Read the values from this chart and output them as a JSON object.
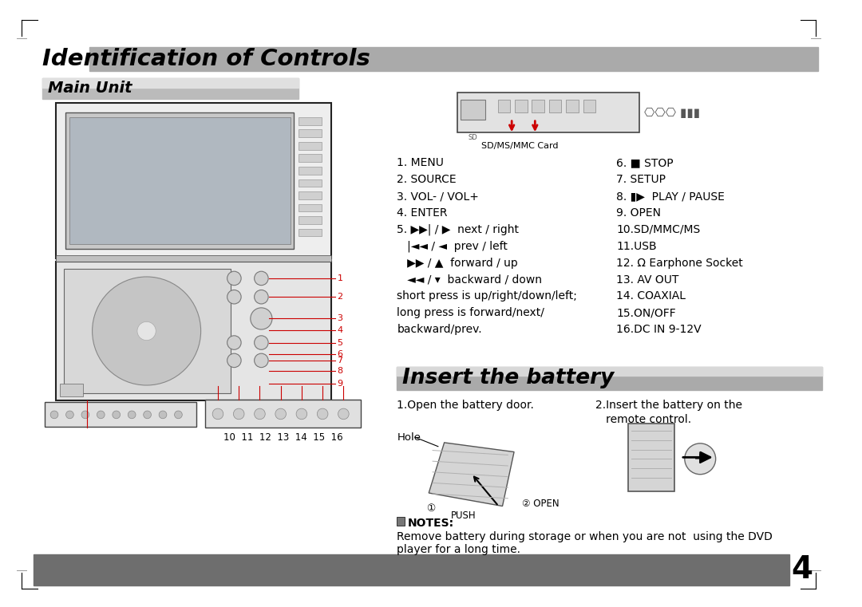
{
  "page_bg": "#ffffff",
  "border_color": "#000000",
  "title1": "Identification of Controls",
  "title1_bg": "#b0b0b0",
  "title2": "Main Unit",
  "title2_bg": "#c8c8c8",
  "title3": "Insert the battery",
  "title3_bg": "#b0b0b0",
  "footer_bg": "#6e6e6e",
  "page_number": "4",
  "sdmmc_label": "SD/MS/MMC Card",
  "hole_label": "Hole",
  "push_label": "PUSH",
  "open_label": "OPEN",
  "numbers_bottom": "10  11  12  13  14  15  16",
  "battery_text1": "1.Open the battery door.",
  "battery_text2a": "2.Insert the battery on the",
  "battery_text2b": "   remote control.",
  "notes_title": "NOTES:",
  "notes_text1": "Remove battery during storage or when you are not  using the DVD",
  "notes_text2": "player for a long time.",
  "left_lines": [
    "1. MENU",
    "2. SOURCE",
    "3. VOL- / VOL+",
    "4. ENTER",
    "5. ▶▶| / ▶  next / right",
    "   |◄◄ / ◄  prev / left",
    "   ▶▶ / ▲  forward / up",
    "   ◄◄ / ▾  backward / down",
    "short press is up/right/down/left;",
    "long press is forward/next/",
    "backward/prev."
  ],
  "right_lines": [
    "6. ■ STOP",
    "7. SETUP",
    "8. ▮▶  PLAY / PAUSE",
    "9. OPEN",
    "10.SD/MMC/MS",
    "11.USB",
    "12. Ω Earphone Socket",
    "13. AV OUT",
    "14. COAXIAL",
    "15.ON/OFF",
    "16.DC IN 9-12V"
  ]
}
